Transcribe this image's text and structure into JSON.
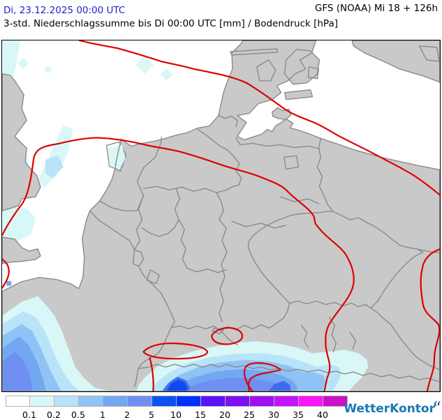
{
  "header": {
    "valid_datetime": "Di, 23.12.2025 00:00 UTC",
    "model_run": "GFS (NOAA) Mi 18 + 126h",
    "product_title": "3-std. Niederschlagssumme bis Di 00:00 UTC [mm] / Bodendruck [hPa]"
  },
  "legend": {
    "labels": [
      "0.1",
      "0.2",
      "0.5",
      "1",
      "2",
      "5",
      "10",
      "15",
      "20",
      "25",
      "30",
      "35",
      "40"
    ],
    "colors": [
      "#ffffff",
      "#d9f7f7",
      "#b9e3f9",
      "#90c3f5",
      "#72a8f1",
      "#6f90f2",
      "#0b52f0",
      "#0033fa",
      "#5a14f2",
      "#7d11ef",
      "#9e11ef",
      "#c414fb",
      "#fa15fa",
      "#ca12ca"
    ]
  },
  "branding": {
    "name": "WetterKontor",
    "brand_color": "#1878b4",
    "mark_color_dark": "#123f6e"
  },
  "map": {
    "colors": {
      "sea": "#ffffff",
      "land": "#c9c9c9",
      "border": "#8a8a8a",
      "isobar": "#dd0000",
      "header_blue": "#2222cc",
      "precip_01": "#d9f7f7",
      "precip_02": "#b9e3f9",
      "precip_05": "#90c3f5",
      "precip_1": "#72a8f1",
      "precip_2": "#6f90f2",
      "precip_5_dark": "#3f6cee",
      "precip_core": "#0b4bf0"
    }
  }
}
